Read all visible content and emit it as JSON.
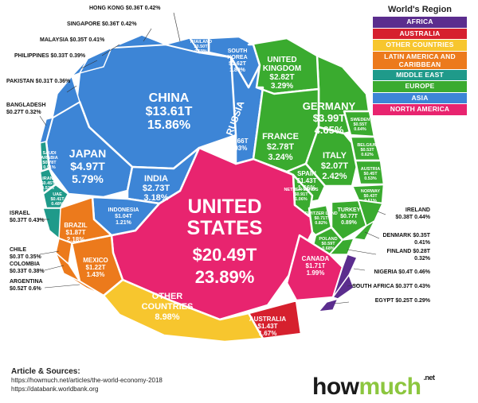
{
  "chart_data": {
    "type": "voronoi",
    "legend": {
      "title": "World's Region",
      "items": [
        {
          "name": "AFRICA",
          "color": "#5b2d8e"
        },
        {
          "name": "AUSTRALIA",
          "color": "#d6202e"
        },
        {
          "name": "OTHER COUNTRIES",
          "color": "#f7c62e"
        },
        {
          "name": "LATIN AMERICA AND CARIBBEAN",
          "color": "#ec7a1c"
        },
        {
          "name": "MIDDLE EAST",
          "color": "#1f9a8a"
        },
        {
          "name": "EUROPE",
          "color": "#3aab2f"
        },
        {
          "name": "ASIA",
          "color": "#3d85d6"
        },
        {
          "name": "NORTH AMERICA",
          "color": "#e8246f"
        }
      ]
    },
    "cells": [
      {
        "id": "usa",
        "name": "UNITED STATES",
        "value": "$20.49T",
        "share": "23.89%",
        "region": "NORTH AMERICA"
      },
      {
        "id": "china",
        "name": "CHINA",
        "value": "$13.61T",
        "share": "15.86%",
        "region": "ASIA"
      },
      {
        "id": "japan",
        "name": "JAPAN",
        "value": "$4.97T",
        "share": "5.79%",
        "region": "ASIA"
      },
      {
        "id": "india",
        "name": "INDIA",
        "value": "$2.73T",
        "share": "3.18%",
        "region": "ASIA"
      },
      {
        "id": "indonesia",
        "name": "INDONESIA",
        "value": "$1.04T",
        "share": "1.21%",
        "region": "ASIA"
      },
      {
        "id": "russia",
        "name": "RUSSIA",
        "value": "$1.66T",
        "share": "1.93%",
        "region": "ASIA"
      },
      {
        "id": "south_korea",
        "name": "SOUTH KOREA",
        "value": "$1.62T",
        "share": "1.89%",
        "region": "ASIA"
      },
      {
        "id": "thailand",
        "name": "THAILAND",
        "value": "$0.50T",
        "share": "0.59%",
        "region": "ASIA"
      },
      {
        "id": "germany",
        "name": "GERMANY",
        "value": "$3.99T",
        "share": "4.65%",
        "region": "EUROPE"
      },
      {
        "id": "uk",
        "name": "UNITED KINGDOM",
        "value": "$2.82T",
        "share": "3.29%",
        "region": "EUROPE"
      },
      {
        "id": "france",
        "name": "FRANCE",
        "value": "$2.78T",
        "share": "3.24%",
        "region": "EUROPE"
      },
      {
        "id": "italy",
        "name": "ITALY",
        "value": "$2.07T",
        "share": "2.42%",
        "region": "EUROPE"
      },
      {
        "id": "spain",
        "name": "SPAIN",
        "value": "$1.43T",
        "share": "1.66%",
        "region": "EUROPE"
      },
      {
        "id": "netherlands",
        "name": "NETHER LANDS",
        "value": "$0.91T",
        "share": "1.06%",
        "region": "EUROPE"
      },
      {
        "id": "switzerland",
        "name": "SWITZER LAND",
        "value": "$0.71T",
        "share": "0.82%",
        "region": "EUROPE"
      },
      {
        "id": "turkey",
        "name": "TURKEY",
        "value": "$0.77T",
        "share": "0.89%",
        "region": "EUROPE"
      },
      {
        "id": "poland",
        "name": "POLAND",
        "value": "$0.59T",
        "share": "0.68%",
        "region": "EUROPE"
      },
      {
        "id": "sweden",
        "name": "SWEDEN",
        "value": "$0.55T",
        "share": "0.64%",
        "region": "EUROPE"
      },
      {
        "id": "belgium",
        "name": "BELGIUM",
        "value": "$0.53T",
        "share": "0.62%",
        "region": "EUROPE"
      },
      {
        "id": "austria",
        "name": "AUSTRIA",
        "value": "$0.45T",
        "share": "0.53%",
        "region": "EUROPE"
      },
      {
        "id": "norway",
        "name": "NORWAY",
        "value": "$0.43T",
        "share": "0.51%",
        "region": "EUROPE"
      },
      {
        "id": "canada",
        "name": "CANADA",
        "value": "$1.71T",
        "share": "1.99%",
        "region": "NORTH AMERICA"
      },
      {
        "id": "mexico",
        "name": "MEXICO",
        "value": "$1.22T",
        "share": "1.43%",
        "region": "LATIN AMERICA AND CARIBBEAN"
      },
      {
        "id": "brazil",
        "name": "BRAZIL",
        "value": "$1.87T",
        "share": "2.18%",
        "region": "LATIN AMERICA AND CARIBBEAN"
      },
      {
        "id": "australia",
        "name": "AUSTRALIA",
        "value": "$1.43T",
        "share": "1.67%",
        "region": "AUSTRALIA"
      },
      {
        "id": "saudi",
        "name": "SAUDI ARABIA",
        "value": "$0.78T",
        "share": "0.91%",
        "region": "MIDDLE EAST"
      },
      {
        "id": "iran",
        "name": "IRAN",
        "value": "$0.45T",
        "share": "0.53%",
        "region": "MIDDLE EAST"
      },
      {
        "id": "uae",
        "name": "UAE",
        "value": "$0.41T",
        "share": "0.48%",
        "region": "MIDDLE EAST"
      },
      {
        "id": "other",
        "name": "OTHER COUNTRIES",
        "value": "",
        "share": "8.98%",
        "region": "OTHER COUNTRIES"
      }
    ],
    "callouts": [
      {
        "id": "hong_kong",
        "text": "HONG KONG $0.36T 0.42%"
      },
      {
        "id": "singapore",
        "text": "SINGAPORE $0.36T 0.42%"
      },
      {
        "id": "malaysia",
        "text": "MALAYSIA $0.35T 0.41%"
      },
      {
        "id": "philippines",
        "text": "PHILIPPINES $0.33T 0.39%"
      },
      {
        "id": "pakistan",
        "text": "PAKISTAN $0.31T 0.36%"
      },
      {
        "id": "bangladesh",
        "text": "BANGLADESH",
        "text2": "$0.27T 0.32%"
      },
      {
        "id": "israel",
        "text": "ISRAEL",
        "text2": "$0.37T 0.43%"
      },
      {
        "id": "chile",
        "text": "CHILE",
        "text2": "$0.3T 0.35%"
      },
      {
        "id": "colombia",
        "text": "COLOMBIA",
        "text2": "$0.33T 0.38%"
      },
      {
        "id": "argentina",
        "text": "ARGENTINA",
        "text2": "$0.52T 0.6%"
      },
      {
        "id": "ireland",
        "text": "IRELAND",
        "text2": "$0.38T 0.44%"
      },
      {
        "id": "denmark",
        "text": "DENMARK $0.35T",
        "text2": "0.41%"
      },
      {
        "id": "finland",
        "text": "FINLAND $0.28T",
        "text2": "0.32%"
      },
      {
        "id": "nigeria",
        "text": "NIGERIA $0.4T 0.46%"
      },
      {
        "id": "south_africa",
        "text": "SOUTH AFRICA $0.37T 0.43%"
      },
      {
        "id": "egypt",
        "text": "EGYPT $0.25T 0.29%"
      }
    ]
  },
  "sources": {
    "heading": "Article & Sources:",
    "line1": "https://howmuch.net/articles/the-world-economy-2018",
    "line2": "https://databank.worldbank.org"
  },
  "logo": {
    "part1": "how",
    "part2": "much",
    "suffix": ".net"
  }
}
